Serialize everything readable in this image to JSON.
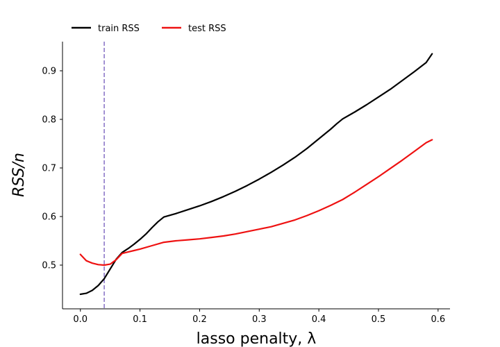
{
  "chart_data": {
    "type": "line",
    "title": "",
    "xlabel": "lasso penalty, λ",
    "ylabel": "RSS/n",
    "xlim": [
      -0.03,
      0.62
    ],
    "ylim": [
      0.41,
      0.96
    ],
    "x_ticks": [
      0.0,
      0.1,
      0.2,
      0.3,
      0.4,
      0.5,
      0.6
    ],
    "x_tick_labels": [
      "0.0",
      "0.1",
      "0.2",
      "0.3",
      "0.4",
      "0.5",
      "0.6"
    ],
    "y_ticks": [
      0.5,
      0.6,
      0.7,
      0.8,
      0.9
    ],
    "y_tick_labels": [
      "0.5",
      "0.6",
      "0.7",
      "0.8",
      "0.9"
    ],
    "grid": false,
    "legend_placement": "top-left, above plot",
    "vline": {
      "x": 0.04,
      "color": "#8c78c8",
      "style": "dashed"
    },
    "series": [
      {
        "name": "train RSS",
        "color": "#000000",
        "x": [
          0.0,
          0.01,
          0.02,
          0.03,
          0.04,
          0.05,
          0.06,
          0.07,
          0.08,
          0.09,
          0.1,
          0.11,
          0.12,
          0.13,
          0.14,
          0.16,
          0.18,
          0.2,
          0.22,
          0.24,
          0.26,
          0.28,
          0.3,
          0.32,
          0.34,
          0.36,
          0.38,
          0.4,
          0.42,
          0.43,
          0.44,
          0.46,
          0.48,
          0.5,
          0.52,
          0.54,
          0.56,
          0.58,
          0.59
        ],
        "values": [
          0.44,
          0.442,
          0.448,
          0.458,
          0.472,
          0.492,
          0.512,
          0.526,
          0.534,
          0.543,
          0.553,
          0.564,
          0.577,
          0.589,
          0.599,
          0.606,
          0.614,
          0.622,
          0.631,
          0.641,
          0.652,
          0.664,
          0.677,
          0.691,
          0.706,
          0.722,
          0.74,
          0.76,
          0.78,
          0.791,
          0.801,
          0.815,
          0.83,
          0.846,
          0.862,
          0.88,
          0.898,
          0.917,
          0.935
        ]
      },
      {
        "name": "test RSS",
        "color": "#ee1111",
        "x": [
          0.0,
          0.01,
          0.02,
          0.03,
          0.04,
          0.05,
          0.06,
          0.07,
          0.08,
          0.09,
          0.1,
          0.12,
          0.14,
          0.16,
          0.18,
          0.2,
          0.22,
          0.24,
          0.26,
          0.28,
          0.3,
          0.32,
          0.34,
          0.36,
          0.38,
          0.4,
          0.42,
          0.44,
          0.46,
          0.48,
          0.5,
          0.52,
          0.54,
          0.56,
          0.58,
          0.59
        ],
        "values": [
          0.522,
          0.509,
          0.504,
          0.501,
          0.5,
          0.502,
          0.511,
          0.524,
          0.527,
          0.53,
          0.533,
          0.54,
          0.547,
          0.55,
          0.552,
          0.554,
          0.557,
          0.56,
          0.564,
          0.569,
          0.574,
          0.579,
          0.586,
          0.593,
          0.602,
          0.612,
          0.623,
          0.635,
          0.65,
          0.666,
          0.682,
          0.699,
          0.716,
          0.734,
          0.752,
          0.758
        ]
      }
    ]
  }
}
